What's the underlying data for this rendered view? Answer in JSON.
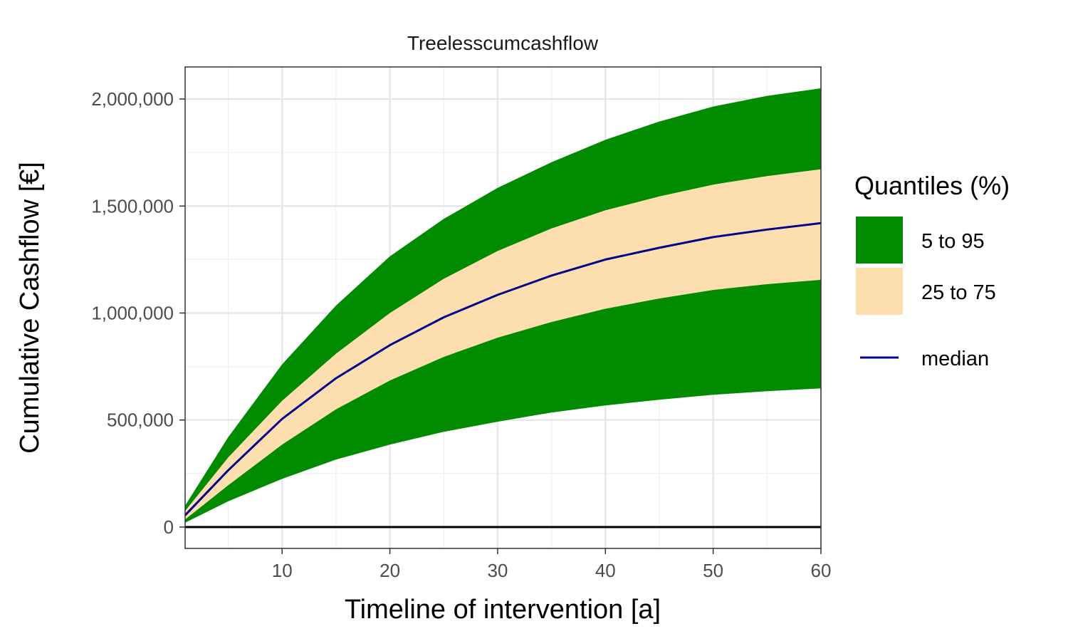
{
  "chart_data": {
    "type": "area",
    "title": "Treelesscumcashflow",
    "xlabel": "Timeline of intervention [a]",
    "ylabel": "Cumulative Cashflow [€]",
    "xlim": [
      1,
      60
    ],
    "ylim": [
      -100000,
      2150000
    ],
    "x_ticks": [
      10,
      20,
      30,
      40,
      50,
      60
    ],
    "x_tick_labels": [
      "10",
      "20",
      "30",
      "40",
      "50",
      "60"
    ],
    "y_ticks": [
      0,
      500000,
      1000000,
      1500000,
      2000000
    ],
    "y_tick_labels": [
      "0",
      "500,000",
      "1,000,000",
      "1,500,000",
      "2,000,000"
    ],
    "grid": true,
    "legend": {
      "title": "Quantiles (%)",
      "position": "right",
      "entries": [
        {
          "label": "5 to 95",
          "color": "#008B00",
          "kind": "fill"
        },
        {
          "label": "25 to 75",
          "color": "#FDDFAF",
          "kind": "fill"
        },
        {
          "label": "median",
          "color": "#00008B",
          "kind": "line"
        }
      ]
    },
    "reference_line": {
      "y": 0,
      "color": "#000000"
    },
    "x": [
      1,
      5,
      10,
      15,
      20,
      25,
      30,
      35,
      40,
      45,
      50,
      55,
      60
    ],
    "series": [
      {
        "name": "5 to 95",
        "color": "#008B00",
        "lower": [
          20000,
          120000,
          225000,
          315000,
          385000,
          445000,
          492000,
          535000,
          568000,
          595000,
          618000,
          635000,
          648000
        ],
        "upper": [
          100000,
          420000,
          760000,
          1035000,
          1265000,
          1440000,
          1585000,
          1705000,
          1810000,
          1895000,
          1965000,
          2015000,
          2050000
        ]
      },
      {
        "name": "25 to 75",
        "color": "#FDDFAF",
        "lower": [
          35000,
          195000,
          385000,
          550000,
          685000,
          795000,
          885000,
          958000,
          1020000,
          1068000,
          1108000,
          1135000,
          1155000
        ],
        "upper": [
          75000,
          325000,
          590000,
          810000,
          1000000,
          1160000,
          1290000,
          1395000,
          1480000,
          1545000,
          1600000,
          1640000,
          1672000
        ]
      },
      {
        "name": "median",
        "color": "#00008B",
        "values": [
          55000,
          265000,
          505000,
          695000,
          850000,
          980000,
          1085000,
          1175000,
          1250000,
          1305000,
          1355000,
          1390000,
          1420000
        ]
      }
    ]
  }
}
